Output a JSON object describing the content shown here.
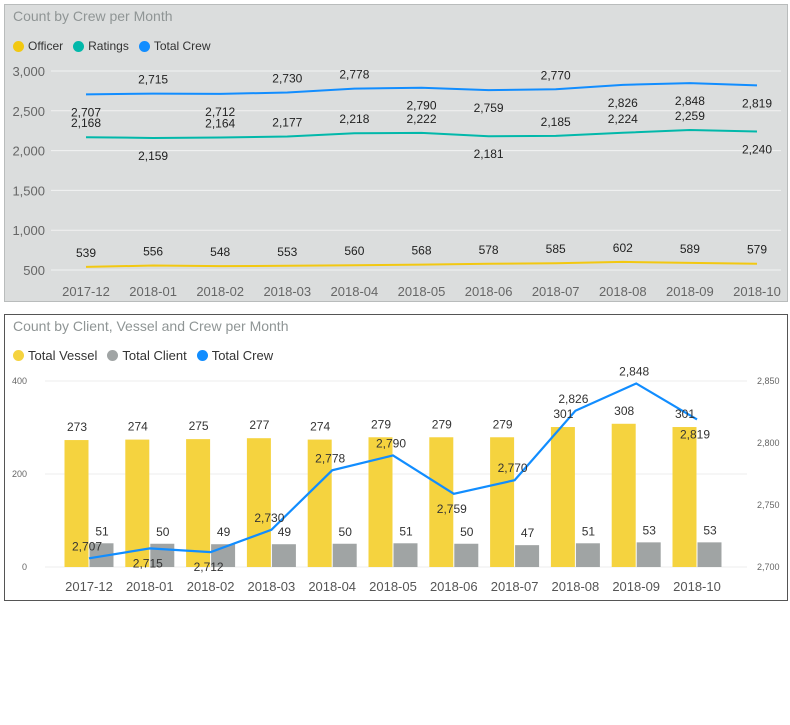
{
  "chart_data": [
    {
      "type": "line",
      "title": "Count by Crew per Month",
      "categories": [
        "2017-12",
        "2018-01",
        "2018-02",
        "2018-03",
        "2018-04",
        "2018-05",
        "2018-06",
        "2018-07",
        "2018-08",
        "2018-09",
        "2018-10"
      ],
      "series": [
        {
          "name": "Officer",
          "color": "#f2c811",
          "values": [
            539,
            556,
            548,
            553,
            560,
            568,
            578,
            585,
            602,
            589,
            579
          ]
        },
        {
          "name": "Ratings",
          "color": "#01b8aa",
          "values": [
            2168,
            2159,
            2164,
            2177,
            2218,
            2222,
            2181,
            2185,
            2224,
            2259,
            2240
          ]
        },
        {
          "name": "Total Crew",
          "color": "#118dff",
          "values": [
            2707,
            2715,
            2712,
            2730,
            2778,
            2790,
            2759,
            2770,
            2826,
            2848,
            2819
          ]
        }
      ],
      "ylim": [
        500,
        3000
      ],
      "yticks": [
        "500",
        "1,000",
        "1,500",
        "2,000",
        "2,500",
        "3,000"
      ],
      "grid": true,
      "legend_position": "top-left"
    },
    {
      "type": "bar",
      "title": "Count by Client, Vessel and Crew per Month",
      "categories": [
        "2017-12",
        "2018-01",
        "2018-02",
        "2018-03",
        "2018-04",
        "2018-05",
        "2018-06",
        "2018-07",
        "2018-08",
        "2018-09",
        "2018-10"
      ],
      "series": [
        {
          "name": "Total Vessel",
          "color": "#f5d33f",
          "values": [
            273,
            274,
            275,
            277,
            274,
            279,
            279,
            279,
            301,
            308,
            301
          ]
        },
        {
          "name": "Total Client",
          "color": "#a0a4a4",
          "values": [
            51,
            50,
            49,
            49,
            50,
            51,
            50,
            47,
            51,
            53,
            53
          ]
        },
        {
          "name": "Total Crew",
          "color": "#118dff",
          "axis": "secondary",
          "values": [
            2707,
            2715,
            2712,
            2730,
            2778,
            2790,
            2759,
            2770,
            2826,
            2848,
            2819
          ]
        }
      ],
      "ylim": [
        0,
        400
      ],
      "yticks": [
        "0",
        "200",
        "400"
      ],
      "y2lim": [
        2700,
        2850
      ],
      "y2ticks": [
        "2,700",
        "2,750",
        "2,800",
        "2,850"
      ],
      "grid": true,
      "legend_position": "top-left"
    }
  ]
}
